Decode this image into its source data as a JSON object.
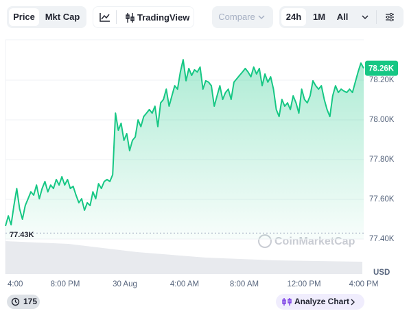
{
  "toolbar": {
    "tabs": [
      "Price",
      "Mkt Cap"
    ],
    "tradingview": "TradingView",
    "compare": "Compare",
    "ranges": [
      "24h",
      "1M",
      "All"
    ]
  },
  "chart_data": {
    "type": "line",
    "color": "#16c784",
    "values": [
      77466,
      77517,
      77472,
      77569,
      77655,
      77552,
      77500,
      77569,
      77603,
      77638,
      77621,
      77672,
      77603,
      77655,
      77690,
      77638,
      77672,
      77655,
      77700,
      77672,
      77714,
      77672,
      77700,
      77655,
      77666,
      77621,
      77583,
      77603,
      77545,
      77583,
      77569,
      77638,
      77603,
      77679,
      77655,
      77690,
      77700,
      77690,
      77724,
      78034,
      77948,
      77983,
      77897,
      77931,
      77845,
      77897,
      77914,
      78000,
      77966,
      78017,
      78034,
      78052,
      78034,
      78069,
      77966,
      78086,
      78103,
      78155,
      78069,
      78121,
      78172,
      78155,
      78241,
      78303,
      78197,
      78259,
      78224,
      78252,
      78241,
      78266,
      78155,
      78197,
      78190,
      78172,
      78069,
      78121,
      78172,
      78103,
      78138,
      78155,
      78103,
      78190,
      78207,
      78224,
      78241,
      78259,
      78241,
      78217,
      78266,
      78231,
      78259,
      78172,
      78231,
      78190,
      78217,
      78155,
      78052,
      78017,
      78103,
      78069,
      78086,
      78052,
      78121,
      78086,
      78034,
      78155,
      78103,
      78086,
      78121,
      78197,
      78172,
      78155,
      78172,
      78103,
      78052,
      78017,
      78121,
      78172,
      78138,
      78155,
      78145,
      78138,
      78155,
      78138,
      78190,
      78241,
      78286,
      78260
    ],
    "ylim": [
      77400,
      78400
    ],
    "yticks": [
      {
        "value": 77400,
        "label": "77.40K"
      },
      {
        "value": 77600,
        "label": "77.60K"
      },
      {
        "value": 77800,
        "label": "77.80K"
      },
      {
        "value": 78000,
        "label": "78.00K"
      },
      {
        "value": 78200,
        "label": "78.20K"
      }
    ],
    "x_tick_labels": [
      "4:00",
      "8:00 PM",
      "30 Aug",
      "4:00 AM",
      "8:00 AM",
      "12:00 PM",
      "4:00 PM"
    ],
    "y_unit": "USD",
    "current": {
      "value": 78260,
      "label": "78.26K"
    },
    "low": {
      "value": 77430,
      "label": "77.43K"
    },
    "watermark": "CoinMarketCap",
    "grid": true
  },
  "footer": {
    "badge": 175,
    "button": "Analyze Chart"
  }
}
